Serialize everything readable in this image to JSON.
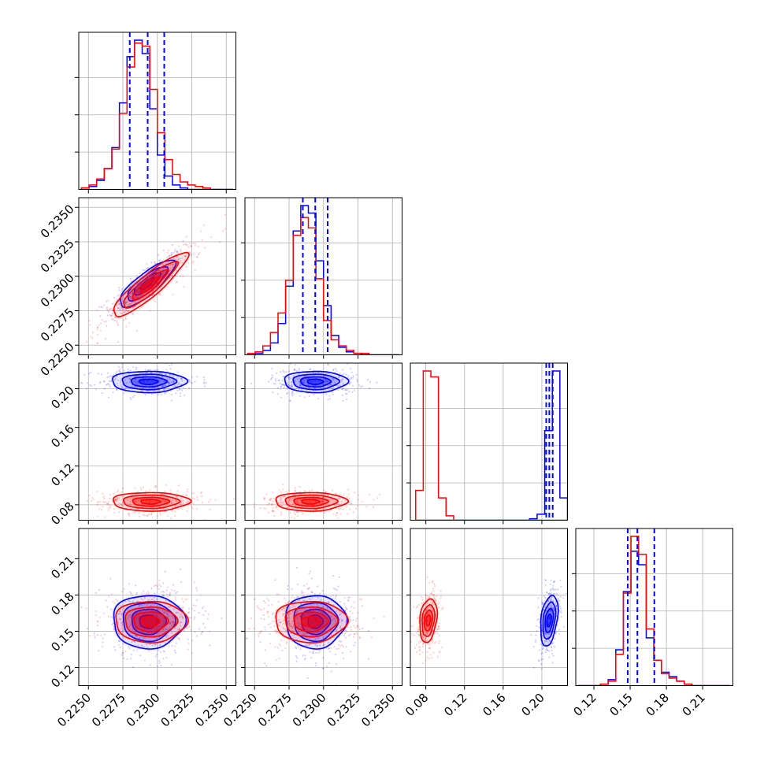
{
  "chart_data": {
    "type": "corner",
    "title": "",
    "grid": true,
    "colors": {
      "blue": "#0000ff",
      "red": "#ff0000"
    },
    "params": [
      {
        "range": [
          0.2243,
          0.2357
        ],
        "ticks": [
          "0.2250",
          "0.2275",
          "0.2300",
          "0.2325",
          "0.2350"
        ],
        "tick_values": [
          0.225,
          0.2275,
          0.23,
          0.2325,
          0.235
        ]
      },
      {
        "range": [
          0.2243,
          0.2357
        ],
        "ticks": [
          "0.2250",
          "0.2275",
          "0.2300",
          "0.2325",
          "0.2350"
        ],
        "tick_values": [
          0.225,
          0.2275,
          0.23,
          0.2325,
          0.235
        ]
      },
      {
        "range": [
          0.064,
          0.2265
        ],
        "ticks": [
          "0.08",
          "0.12",
          "0.16",
          "0.20"
        ],
        "tick_values": [
          0.08,
          0.12,
          0.16,
          0.2
        ]
      },
      {
        "range": [
          0.105,
          0.235
        ],
        "ticks": [
          "0.12",
          "0.15",
          "0.18",
          "0.21"
        ],
        "tick_values": [
          0.12,
          0.15,
          0.18,
          0.21
        ]
      }
    ],
    "histograms": [
      {
        "bins": [
          0.2245,
          0.2355,
          20
        ],
        "blue": [
          1,
          2,
          6,
          14,
          28,
          58,
          89,
          100,
          91,
          54,
          23,
          9,
          3,
          1,
          0,
          0,
          0,
          0,
          0,
          0
        ],
        "red": [
          1,
          3,
          7,
          14,
          27,
          51,
          82,
          98,
          96,
          67,
          38,
          20,
          10,
          5,
          3,
          2,
          1,
          0,
          0,
          0
        ],
        "quantiles_blue": [
          0.228,
          0.2293,
          0.2305
        ]
      },
      {
        "bins": [
          0.2245,
          0.2355,
          20
        ],
        "blue": [
          0,
          1,
          3,
          8,
          21,
          46,
          83,
          100,
          95,
          63,
          33,
          13,
          5,
          2,
          1,
          0,
          0,
          0,
          0,
          0
        ],
        "red": [
          1,
          2,
          6,
          15,
          28,
          50,
          80,
          92,
          85,
          51,
          23,
          10,
          6,
          3,
          1,
          1,
          0,
          0,
          0,
          0
        ],
        "quantiles_blue": [
          0.2285,
          0.2294,
          0.2303
        ]
      },
      {
        "bins": [
          0.0695,
          0.2265,
          20
        ],
        "blue": [
          0,
          0,
          0,
          0,
          0,
          0,
          0,
          0,
          0,
          0,
          0,
          0,
          0,
          0,
          0,
          1,
          4,
          60,
          100,
          15
        ],
        "red": [
          20,
          100,
          96,
          15,
          3,
          0,
          0,
          0,
          0,
          0,
          0,
          0,
          0,
          0,
          0,
          0,
          0,
          0,
          0,
          0
        ],
        "quantiles_blue": [
          0.2045,
          0.2077,
          0.2112
        ]
      },
      {
        "bins": [
          0.1066,
          0.2326,
          20
        ],
        "blue": [
          0,
          0,
          0,
          1,
          4,
          24,
          63,
          90,
          81,
          32,
          17,
          9,
          6,
          3,
          1,
          0,
          0,
          0,
          0,
          0
        ],
        "red": [
          0,
          0,
          0,
          1,
          3,
          21,
          62,
          100,
          88,
          38,
          17,
          8,
          5,
          3,
          1,
          0,
          0,
          0,
          0,
          0
        ],
        "quantiles_blue": [
          0.148,
          0.156,
          0.17
        ]
      }
    ],
    "pairs": [
      {
        "x": 0,
        "y": 1,
        "blue": {
          "mean": [
            0.22925,
            0.22945
          ],
          "sd": [
            0.001,
            0.00085
          ],
          "rho": 0.82
        },
        "red": {
          "mean": [
            0.22945,
            0.22935
          ],
          "sd": [
            0.00135,
            0.00115
          ],
          "rho": 0.9
        }
      },
      {
        "x": 0,
        "y": 2,
        "blue": {
          "mean": [
            0.22935,
            0.2072
          ],
          "sd": [
            0.00135,
            0.0055
          ],
          "rho": 0.0
        },
        "red": {
          "mean": [
            0.2295,
            0.0832
          ],
          "sd": [
            0.0014,
            0.0048
          ],
          "rho": 0.0
        }
      },
      {
        "x": 1,
        "y": 2,
        "blue": {
          "mean": [
            0.2294,
            0.2072
          ],
          "sd": [
            0.00115,
            0.0055
          ],
          "rho": 0.0
        },
        "red": {
          "mean": [
            0.22905,
            0.0832
          ],
          "sd": [
            0.0013,
            0.0048
          ],
          "rho": 0.0
        }
      },
      {
        "x": 0,
        "y": 3,
        "blue": {
          "mean": [
            0.22935,
            0.158
          ],
          "sd": [
            0.0013,
            0.011
          ],
          "rho": 0.0
        },
        "red": {
          "mean": [
            0.2295,
            0.158
          ],
          "sd": [
            0.0013,
            0.0085
          ],
          "rho": 0.0
        }
      },
      {
        "x": 1,
        "y": 3,
        "blue": {
          "mean": [
            0.2294,
            0.158
          ],
          "sd": [
            0.0011,
            0.011
          ],
          "rho": 0.0
        },
        "red": {
          "mean": [
            0.22905,
            0.158
          ],
          "sd": [
            0.0013,
            0.0085
          ],
          "rho": 0.0
        }
      },
      {
        "x": 2,
        "y": 3,
        "blue": {
          "mean": [
            0.2075,
            0.159
          ],
          "sd": [
            0.0045,
            0.0105
          ],
          "rho": 0.35
        },
        "red": {
          "mean": [
            0.0825,
            0.159
          ],
          "sd": [
            0.0045,
            0.009
          ],
          "rho": 0.25
        }
      }
    ]
  }
}
